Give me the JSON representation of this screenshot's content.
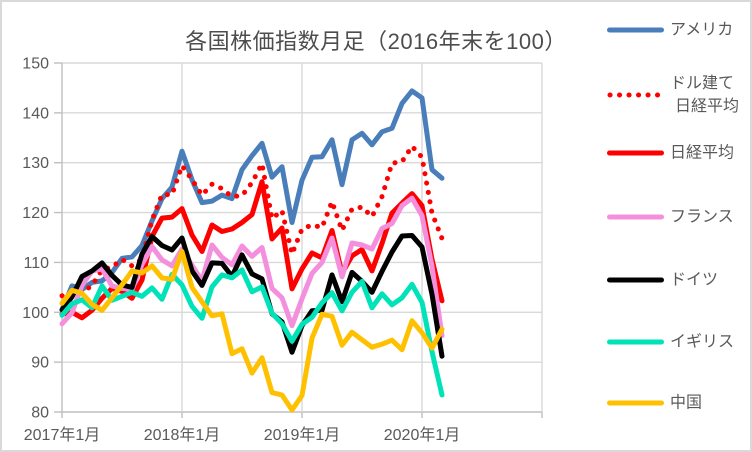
{
  "chart_data": {
    "type": "line",
    "title": "各国株価指数月足（2016年末を100）",
    "subtitle": "",
    "xlabel": "",
    "ylabel": "",
    "ylim": [
      80,
      150
    ],
    "y_tick_step": 10,
    "y_tick_labels": [
      "150",
      "140",
      "130",
      "120",
      "110",
      "100",
      "90",
      "80"
    ],
    "x_tick_labels": [
      "2017年1月",
      "2018年1月",
      "2019年1月",
      "2020年1月"
    ],
    "x_tick_every_months": 12,
    "grid": true,
    "legend_position": "right",
    "categories": [
      "2017年1月",
      "2017年2月",
      "2017年3月",
      "2017年4月",
      "2017年5月",
      "2017年6月",
      "2017年7月",
      "2017年8月",
      "2017年9月",
      "2017年10月",
      "2017年11月",
      "2017年12月",
      "2018年1月",
      "2018年2月",
      "2018年3月",
      "2018年4月",
      "2018年5月",
      "2018年6月",
      "2018年7月",
      "2018年8月",
      "2018年9月",
      "2018年10月",
      "2018年11月",
      "2018年12月",
      "2019年1月",
      "2019年2月",
      "2019年3月",
      "2019年4月",
      "2019年5月",
      "2019年6月",
      "2019年7月",
      "2019年8月",
      "2019年9月",
      "2019年10月",
      "2019年11月",
      "2019年12月",
      "2020年1月",
      "2020年2月",
      "2020年3月"
    ],
    "series": [
      {
        "id": "usa",
        "name": "アメリカ",
        "legend_lines": [
          "アメリカ"
        ],
        "color": "#4A7EBB",
        "style": "solid",
        "values": [
          100.5,
          105.3,
          104.6,
          106.0,
          106.3,
          108.0,
          110.8,
          111.1,
          113.4,
          118.3,
          122.8,
          125.1,
          132.3,
          126.6,
          122.0,
          122.3,
          123.5,
          122.8,
          128.6,
          131.4,
          133.9,
          127.1,
          129.2,
          118.0,
          126.5,
          131.1,
          131.2,
          134.6,
          125.6,
          134.6,
          135.9,
          133.6,
          136.2,
          136.9,
          141.9,
          144.4,
          143.0,
          128.6,
          126.9
        ]
      },
      {
        "id": "nikkei-usd",
        "name": "ドル建て日経平均",
        "legend_lines": [
          "ドル建て",
          "日経平均"
        ],
        "color": "#FF0000",
        "style": "dotted",
        "values": [
          103.3,
          103.7,
          103.9,
          105.4,
          108.5,
          109.1,
          110.6,
          109.3,
          110.7,
          118.5,
          123.6,
          123.6,
          129.4,
          126.6,
          123.5,
          125.7,
          124.8,
          123.2,
          123.4,
          126.0,
          129.8,
          118.8,
          120.4,
          111.7,
          116.7,
          117.5,
          117.0,
          122.2,
          116.4,
          120.7,
          121.1,
          119.2,
          123.2,
          129.9,
          130.2,
          133.3,
          131.1,
          119.9,
          114.8
        ]
      },
      {
        "id": "nikkei",
        "name": "日経平均",
        "legend_lines": [
          "日経平均"
        ],
        "color": "#FF0000",
        "style": "solid",
        "values": [
          99.6,
          100.0,
          98.9,
          100.4,
          102.8,
          104.8,
          104.2,
          102.8,
          106.5,
          115.2,
          118.9,
          119.1,
          120.8,
          115.5,
          112.2,
          117.5,
          116.2,
          116.7,
          118.0,
          119.6,
          126.2,
          114.7,
          116.9,
          104.7,
          108.7,
          111.9,
          110.9,
          116.4,
          107.8,
          111.3,
          112.6,
          108.3,
          113.8,
          119.9,
          121.9,
          123.8,
          121.4,
          110.6,
          102.3
        ]
      },
      {
        "id": "france",
        "name": "フランス",
        "legend_lines": [
          "フランス"
        ],
        "color": "#F48FDE",
        "style": "solid",
        "values": [
          97.7,
          99.9,
          105.4,
          108.3,
          108.7,
          105.3,
          104.8,
          104.6,
          109.6,
          113.2,
          110.5,
          109.3,
          112.7,
          109.4,
          106.3,
          113.5,
          111.0,
          109.5,
          113.3,
          111.2,
          113.0,
          104.8,
          102.9,
          97.3,
          102.7,
          107.8,
          110.0,
          114.9,
          107.1,
          113.9,
          113.5,
          112.7,
          116.8,
          117.8,
          121.4,
          122.9,
          119.4,
          109.2,
          95.3
        ]
      },
      {
        "id": "germany",
        "name": "ドイツ",
        "legend_lines": [
          "ドイツ"
        ],
        "color": "#000000",
        "style": "solid",
        "values": [
          100.5,
          103.1,
          107.2,
          108.3,
          109.9,
          107.4,
          105.5,
          105.0,
          111.7,
          115.2,
          113.4,
          112.5,
          114.9,
          108.3,
          105.4,
          109.9,
          109.8,
          107.2,
          111.5,
          107.7,
          106.7,
          99.7,
          98.1,
          92.0,
          97.3,
          100.3,
          100.4,
          107.5,
          102.1,
          108.0,
          106.2,
          104.0,
          108.2,
          112.1,
          115.3,
          115.4,
          113.1,
          103.6,
          91.2
        ]
      },
      {
        "id": "uk",
        "name": "イギリス",
        "legend_lines": [
          "イギリス"
        ],
        "color": "#00E2B8",
        "style": "solid",
        "values": [
          99.4,
          101.7,
          102.5,
          100.9,
          105.3,
          102.4,
          103.2,
          104.0,
          103.2,
          104.9,
          102.6,
          107.6,
          105.5,
          101.2,
          98.8,
          105.1,
          107.5,
          106.9,
          108.5,
          104.1,
          105.1,
          99.8,
          97.7,
          94.2,
          97.6,
          99.0,
          101.9,
          103.9,
          100.3,
          104.0,
          106.2,
          100.9,
          103.7,
          101.5,
          102.9,
          105.6,
          102.0,
          92.1,
          83.4
        ]
      },
      {
        "id": "china",
        "name": "中国",
        "legend_lines": [
          "中国"
        ],
        "color": "#FFC000",
        "style": "solid",
        "values": [
          101.8,
          104.4,
          103.8,
          101.6,
          100.4,
          102.9,
          105.5,
          108.3,
          107.9,
          109.3,
          106.9,
          106.6,
          112.2,
          105.0,
          102.1,
          99.3,
          99.7,
          91.7,
          92.7,
          87.8,
          90.9,
          83.9,
          83.4,
          80.4,
          83.3,
          94.8,
          99.6,
          99.2,
          93.4,
          96.0,
          94.5,
          93.0,
          93.6,
          94.4,
          92.5,
          98.3,
          95.9,
          92.8,
          96.6
        ]
      }
    ],
    "colors": {
      "gridline": "#D9D9D9",
      "axis": "#BFBFBF",
      "axis_text": "#595959",
      "title_text": "#4D4D4D",
      "background": "#FFFFFF",
      "frame_border": "#D9D9D9"
    }
  }
}
